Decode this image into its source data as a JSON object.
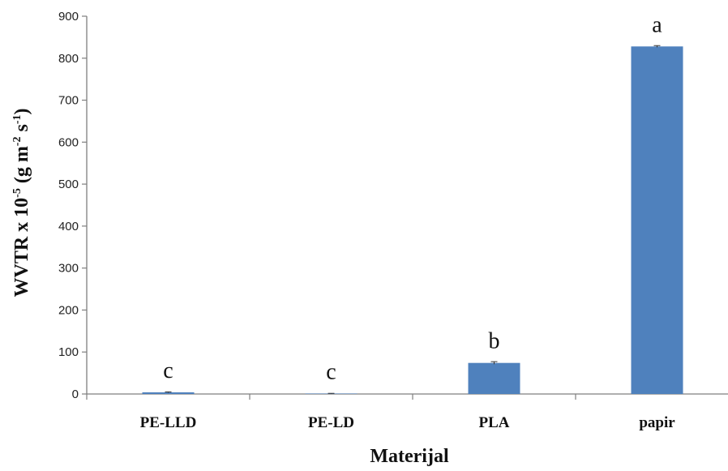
{
  "chart_data": {
    "type": "bar",
    "categories": [
      "PE-LLD",
      "PE-LD",
      "PLA",
      "papir"
    ],
    "values": [
      4,
      1,
      74,
      828
    ],
    "error": [
      1,
      0.5,
      3,
      2
    ],
    "significance_letters": [
      "c",
      "c",
      "b",
      "a"
    ],
    "xlabel": "Materijal",
    "ylabel": {
      "prefix": "WVTR x 10",
      "exp1": "-5",
      "mid": " (g m",
      "exp2": "-2",
      "mid2": " s",
      "exp3": "-1",
      "suffix": ")"
    },
    "ylim": [
      0,
      900
    ],
    "yticks": [
      0,
      100,
      200,
      300,
      400,
      500,
      600,
      700,
      800,
      900
    ],
    "grid": false,
    "bar_color": "#4f81bd",
    "axis_color": "#7f7f7f"
  }
}
